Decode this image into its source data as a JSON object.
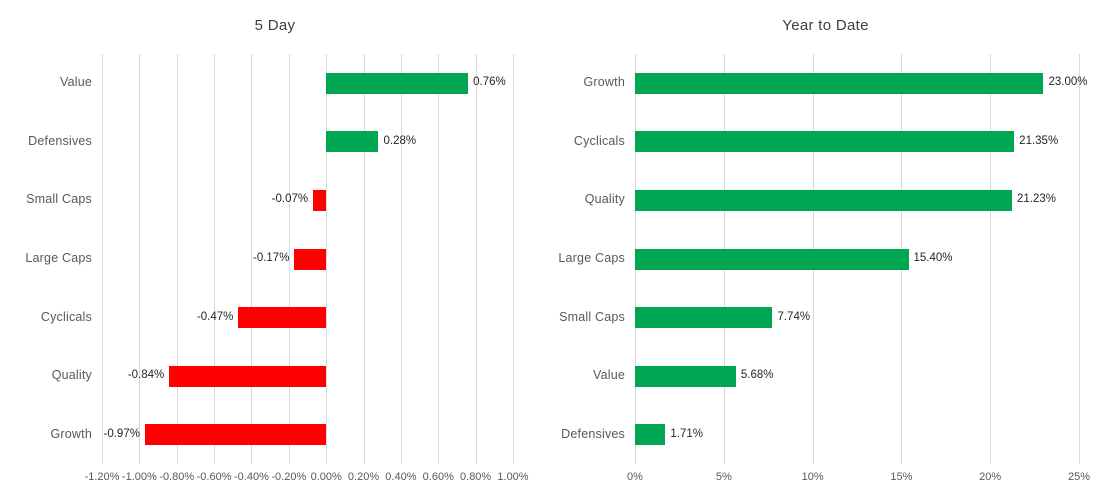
{
  "page": {
    "background_color": "#FFFFFF"
  },
  "colors": {
    "positive_bar": "#00A651",
    "negative_bar": "#FF0000",
    "gridline": "#D9D9D9",
    "axis_text": "#595959",
    "category_text": "#595959",
    "data_label_text": "#262626",
    "title_text": "#404040"
  },
  "chart_data": [
    {
      "type": "bar",
      "orientation": "horizontal",
      "title": "5 Day",
      "categories": [
        "Value",
        "Defensives",
        "Small Caps",
        "Large Caps",
        "Cyclicals",
        "Quality",
        "Growth"
      ],
      "values": [
        0.76,
        0.28,
        -0.07,
        -0.17,
        -0.47,
        -0.84,
        -0.97
      ],
      "data_labels": [
        "0.76%",
        "0.28%",
        "-0.07%",
        "-0.17%",
        "-0.47%",
        "-0.84%",
        "-0.97%"
      ],
      "xlim": [
        -1.2,
        1.0
      ],
      "tick_values": [
        -1.2,
        -1.0,
        -0.8,
        -0.6,
        -0.4,
        -0.2,
        0.0,
        0.2,
        0.4,
        0.6,
        0.8,
        1.0
      ],
      "tick_labels": [
        "-1.20%",
        "-1.00%",
        "-0.80%",
        "-0.60%",
        "-0.40%",
        "-0.20%",
        "0.00%",
        "0.20%",
        "0.40%",
        "0.60%",
        "0.80%",
        "1.00%"
      ],
      "positive_color": "#00A651",
      "negative_color": "#FF0000",
      "grid": true,
      "legend": "none"
    },
    {
      "type": "bar",
      "orientation": "horizontal",
      "title": "Year to Date",
      "categories": [
        "Growth",
        "Cyclicals",
        "Quality",
        "Large Caps",
        "Small Caps",
        "Value",
        "Defensives"
      ],
      "values": [
        23.0,
        21.35,
        21.23,
        15.4,
        7.74,
        5.68,
        1.71
      ],
      "data_labels": [
        "23.00%",
        "21.35%",
        "21.23%",
        "15.40%",
        "7.74%",
        "5.68%",
        "1.71%"
      ],
      "xlim": [
        0,
        25
      ],
      "tick_values": [
        0,
        5,
        10,
        15,
        20,
        25
      ],
      "tick_labels": [
        "0%",
        "5%",
        "10%",
        "15%",
        "20%",
        "25%"
      ],
      "positive_color": "#00A651",
      "negative_color": "#FF0000",
      "grid": true,
      "legend": "none"
    }
  ]
}
